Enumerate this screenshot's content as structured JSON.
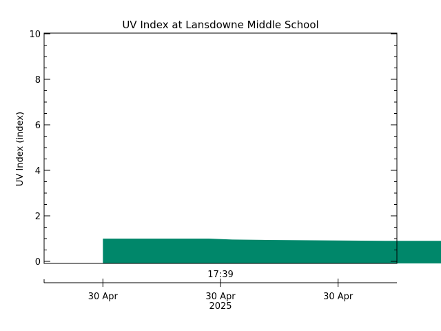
{
  "chart_data": {
    "type": "area",
    "title": "UV Index at Lansdowne Middle School",
    "ylabel": "UV Index (index)",
    "xlabel": "",
    "ylim": [
      0,
      10
    ],
    "y_ticks": [
      0,
      2,
      4,
      6,
      8,
      10
    ],
    "x_range_minutes": [
      1029,
      1059
    ],
    "x_ticks": [
      {
        "time": "17:14",
        "label": "30 Apr",
        "sublabel": ""
      },
      {
        "time": "17:24",
        "label": "30 Apr",
        "sublabel": "2025"
      },
      {
        "time": "17:34",
        "label": "30 Apr",
        "sublabel": ""
      },
      {
        "time": "17:44",
        "label": "30 Apr",
        "sublabel": ""
      }
    ],
    "time_marker": "17:39",
    "series": [
      {
        "color": "#00876a",
        "points": [
          {
            "time": "17:14",
            "value": 1.0
          },
          {
            "time": "17:23",
            "value": 1.0
          },
          {
            "time": "17:25",
            "value": 0.96
          },
          {
            "time": "17:28",
            "value": 0.94
          },
          {
            "time": "17:33",
            "value": 0.92
          },
          {
            "time": "17:38",
            "value": 0.9
          },
          {
            "time": "17:44",
            "value": 0.9
          }
        ]
      }
    ],
    "grid": false,
    "legend": "none"
  }
}
